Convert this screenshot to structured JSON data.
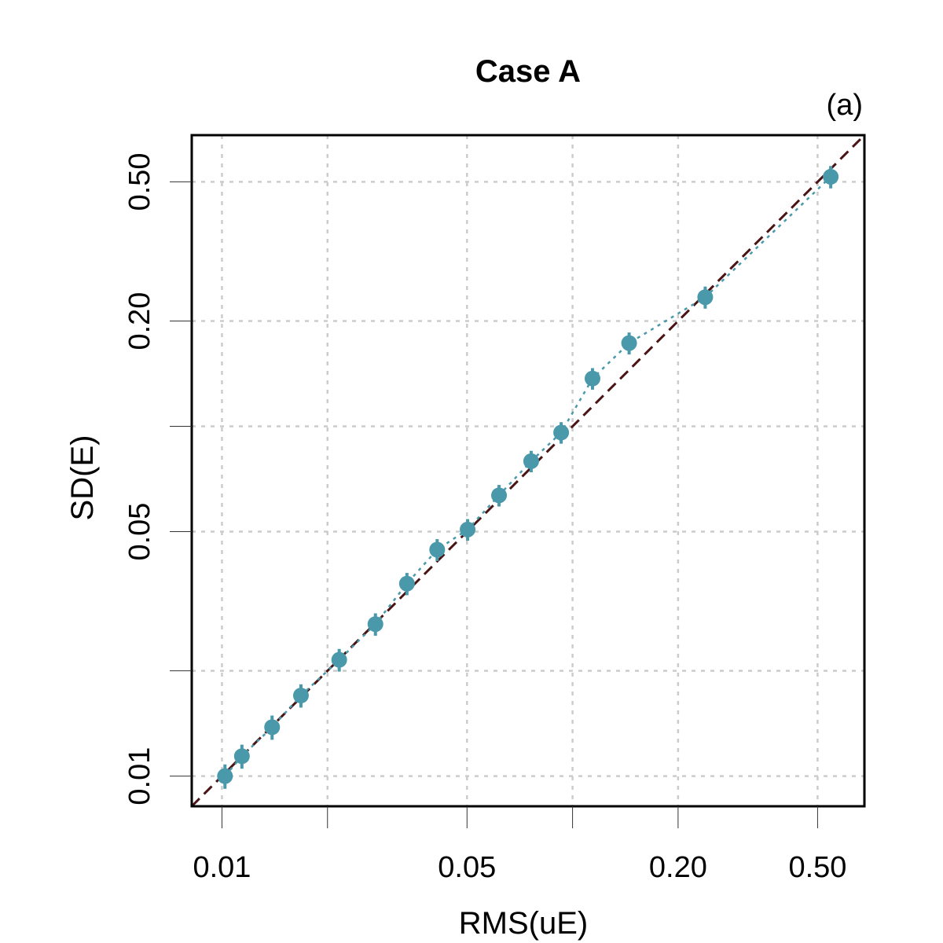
{
  "chart_data": {
    "type": "scatter",
    "title": "Case A",
    "panel_label": "(a)",
    "xlabel": "RMS(uE)",
    "ylabel": "SD(E)",
    "xscale": "log",
    "yscale": "log",
    "xlim": [
      0.0082,
      0.68
    ],
    "ylim": [
      0.0082,
      0.68
    ],
    "grid": true,
    "xticks": [
      {
        "value": 0.01,
        "label": "0.01"
      },
      {
        "value": 0.02,
        "label": ""
      },
      {
        "value": 0.05,
        "label": "0.05"
      },
      {
        "value": 0.1,
        "label": ""
      },
      {
        "value": 0.2,
        "label": "0.20"
      },
      {
        "value": 0.5,
        "label": "0.50"
      }
    ],
    "yticks": [
      {
        "value": 0.01,
        "label": "0.01"
      },
      {
        "value": 0.02,
        "label": ""
      },
      {
        "value": 0.05,
        "label": "0.05"
      },
      {
        "value": 0.1,
        "label": ""
      },
      {
        "value": 0.2,
        "label": "0.20"
      },
      {
        "value": 0.5,
        "label": "0.50"
      }
    ],
    "reference_line": {
      "style": "dashed",
      "color": "#4a1414",
      "relation": "y = x"
    },
    "series": [
      {
        "color": "#4a99aa",
        "x": [
          0.0102,
          0.0114,
          0.0139,
          0.0168,
          0.0216,
          0.0274,
          0.0337,
          0.0411,
          0.0502,
          0.0617,
          0.0762,
          0.0928,
          0.114,
          0.145,
          0.239,
          0.545
        ],
        "y": [
          0.01,
          0.0114,
          0.0138,
          0.017,
          0.0215,
          0.0272,
          0.0355,
          0.0444,
          0.0507,
          0.0635,
          0.0795,
          0.096,
          0.137,
          0.173,
          0.234,
          0.517
        ],
        "err": [
          0.0008,
          0.0009,
          0.0011,
          0.0013,
          0.0016,
          0.002,
          0.0026,
          0.0032,
          0.0036,
          0.0045,
          0.0056,
          0.0068,
          0.0097,
          0.0125,
          0.017,
          0.038
        ]
      }
    ]
  }
}
